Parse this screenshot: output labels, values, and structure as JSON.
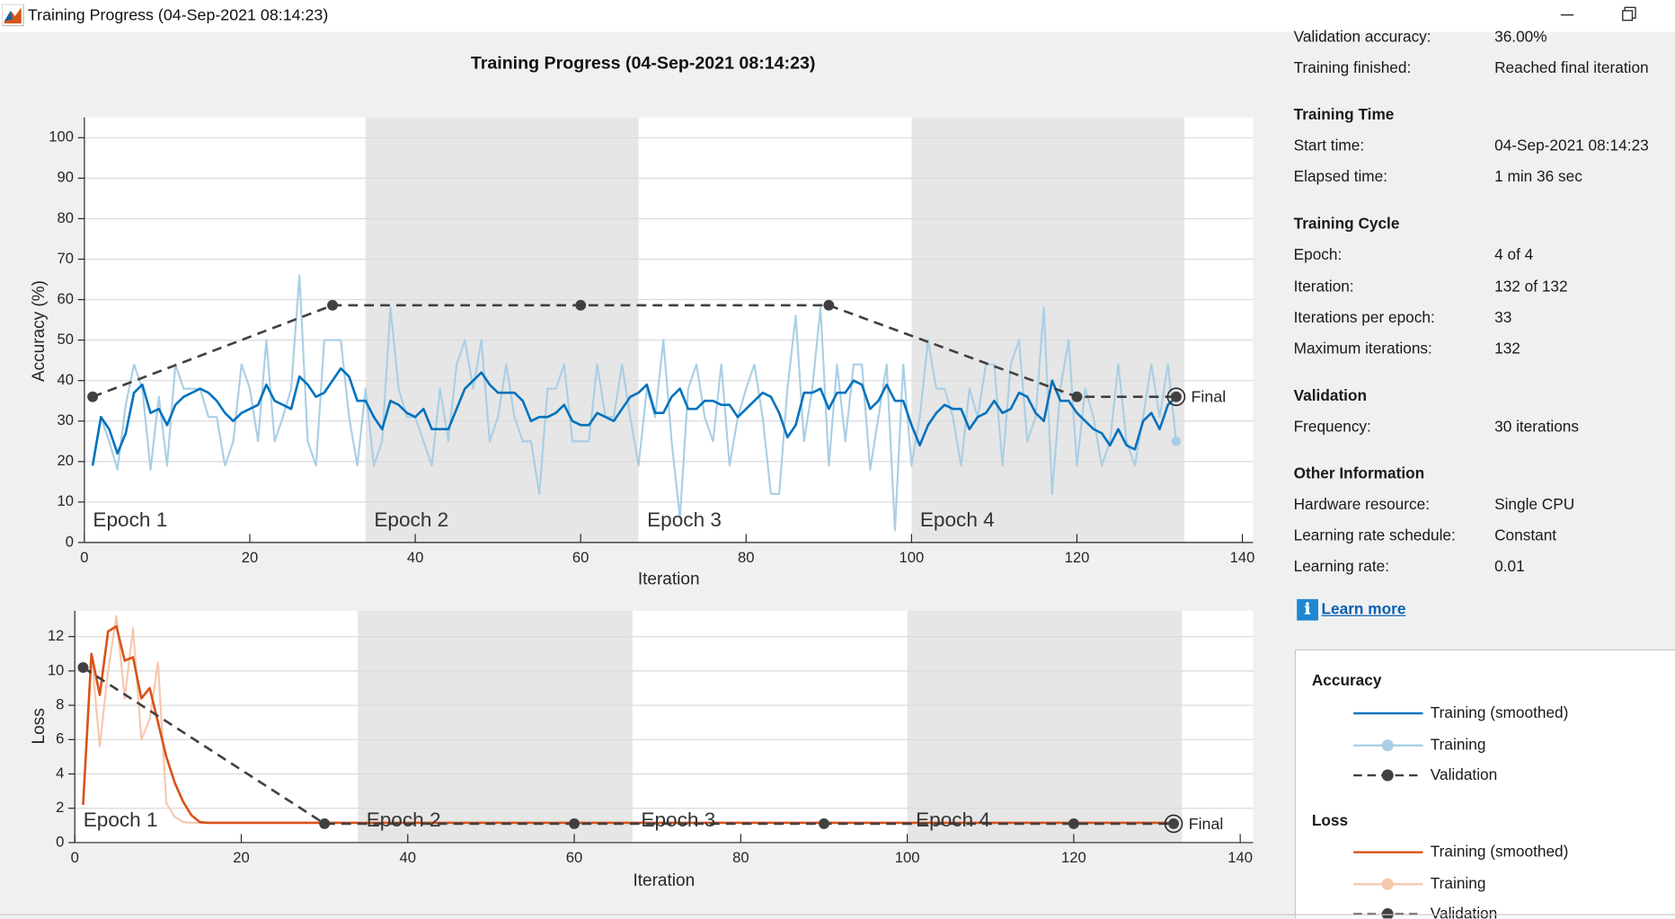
{
  "window_title": "Training Progress (04-Sep-2021 08:14:23)",
  "figure_title": "Training Progress (04-Sep-2021 08:14:23)",
  "chart_data": [
    {
      "type": "line",
      "legend_title": "Accuracy",
      "xlabel": "Iteration",
      "ylabel": "Accuracy (%)",
      "xlim": [
        0,
        140
      ],
      "xticks": [
        0,
        20,
        40,
        60,
        80,
        100,
        120,
        140
      ],
      "ylim": [
        0,
        105
      ],
      "yticks": [
        0,
        10,
        20,
        30,
        40,
        50,
        60,
        70,
        80,
        90,
        100
      ],
      "grid": true,
      "final_label": "Final",
      "epochs": [
        {
          "label": "Epoch 1",
          "start": 0,
          "end": 34
        },
        {
          "label": "Epoch 2",
          "start": 34,
          "end": 67
        },
        {
          "label": "Epoch 3",
          "start": 67,
          "end": 100
        },
        {
          "label": "Epoch 4",
          "start": 100,
          "end": 133
        }
      ],
      "x": [
        1,
        2,
        3,
        4,
        5,
        6,
        7,
        8,
        9,
        10,
        11,
        12,
        13,
        14,
        15,
        16,
        17,
        18,
        19,
        20,
        21,
        22,
        23,
        24,
        25,
        26,
        27,
        28,
        29,
        30,
        31,
        32,
        33,
        34,
        35,
        36,
        37,
        38,
        39,
        40,
        41,
        42,
        43,
        44,
        45,
        46,
        47,
        48,
        49,
        50,
        51,
        52,
        53,
        54,
        55,
        56,
        57,
        58,
        59,
        60,
        61,
        62,
        63,
        64,
        65,
        66,
        67,
        68,
        69,
        70,
        71,
        72,
        73,
        74,
        75,
        76,
        77,
        78,
        79,
        80,
        81,
        82,
        83,
        84,
        85,
        86,
        87,
        88,
        89,
        90,
        91,
        92,
        93,
        94,
        95,
        96,
        97,
        98,
        99,
        100,
        101,
        102,
        103,
        104,
        105,
        106,
        107,
        108,
        109,
        110,
        111,
        112,
        113,
        114,
        115,
        116,
        117,
        118,
        119,
        120,
        121,
        122,
        123,
        124,
        125,
        126,
        127,
        128,
        129,
        130,
        131,
        132
      ],
      "series": [
        {
          "name": "Training (smoothed)",
          "color": "#0072bd",
          "line_style": "solid",
          "values": [
            19,
            31,
            28,
            22,
            27,
            37,
            39,
            32,
            33,
            29,
            34,
            36,
            37,
            38,
            37,
            35,
            32,
            30,
            32,
            33,
            34,
            39,
            35,
            34,
            33,
            41,
            39,
            36,
            37,
            40,
            43,
            41,
            35,
            35,
            31,
            28,
            35,
            34,
            32,
            31,
            33,
            28,
            28,
            28,
            33,
            38,
            40,
            42,
            39,
            37,
            37,
            37,
            35,
            30,
            31,
            31,
            32,
            34,
            30,
            29,
            29,
            32,
            31,
            30,
            33,
            36,
            37,
            39,
            32,
            32,
            36,
            38,
            33,
            33,
            35,
            35,
            34,
            34,
            31,
            33,
            35,
            37,
            36,
            32,
            26,
            29,
            37,
            37,
            38,
            33,
            37,
            37,
            40,
            39,
            33,
            35,
            39,
            35,
            35,
            29,
            24,
            29,
            32,
            34,
            33,
            33,
            28,
            31,
            32,
            35,
            32,
            33,
            37,
            36,
            32,
            30,
            40,
            35,
            35,
            32,
            30,
            28,
            27,
            24,
            28,
            24,
            23,
            30,
            32,
            28,
            34,
            36
          ]
        },
        {
          "name": "Training",
          "color": "#a9cfe4",
          "line_style": "solid",
          "marker": "o",
          "values": [
            19,
            31,
            25,
            18,
            34,
            44,
            38,
            18,
            36,
            19,
            44,
            38,
            38,
            38,
            31,
            31,
            19,
            25,
            44,
            38,
            25,
            50,
            25,
            31,
            38,
            66,
            25,
            19,
            50,
            50,
            50,
            31,
            19,
            38,
            19,
            25,
            58,
            38,
            31,
            31,
            25,
            19,
            38,
            25,
            44,
            50,
            38,
            50,
            25,
            31,
            44,
            31,
            25,
            25,
            12,
            38,
            38,
            44,
            25,
            25,
            25,
            44,
            31,
            31,
            44,
            31,
            19,
            38,
            31,
            50,
            25,
            6,
            38,
            44,
            31,
            25,
            44,
            19,
            31,
            38,
            44,
            31,
            12,
            12,
            38,
            56,
            25,
            38,
            58,
            19,
            44,
            25,
            44,
            44,
            18,
            31,
            44,
            3,
            44,
            19,
            31,
            50,
            38,
            38,
            31,
            19,
            38,
            31,
            44,
            44,
            19,
            44,
            50,
            25,
            31,
            58,
            12,
            38,
            50,
            19,
            38,
            31,
            19,
            25,
            44,
            25,
            19,
            31,
            44,
            31,
            44,
            25
          ]
        },
        {
          "name": "Validation",
          "color": "#404040",
          "line_style": "dashed",
          "marker": "o",
          "x": [
            1,
            30,
            60,
            90,
            120,
            132
          ],
          "values": [
            36,
            58.6,
            58.6,
            58.6,
            36,
            36
          ]
        }
      ]
    },
    {
      "type": "line",
      "legend_title": "Loss",
      "xlabel": "Iteration",
      "ylabel": "Loss",
      "xlim": [
        0,
        140
      ],
      "xticks": [
        0,
        20,
        40,
        60,
        80,
        100,
        120,
        140
      ],
      "ylim": [
        0,
        13.5
      ],
      "yticks": [
        0,
        2,
        4,
        6,
        8,
        10,
        12
      ],
      "grid": true,
      "final_label": "Final",
      "epochs": [
        {
          "label": "Epoch 1",
          "start": 0,
          "end": 34
        },
        {
          "label": "Epoch 2",
          "start": 34,
          "end": 67
        },
        {
          "label": "Epoch 3",
          "start": 67,
          "end": 100
        },
        {
          "label": "Epoch 4",
          "start": 100,
          "end": 133
        }
      ],
      "x": [
        1,
        2,
        3,
        4,
        5,
        6,
        7,
        8,
        9,
        10,
        11,
        12,
        13,
        14,
        15,
        16,
        17,
        18,
        19,
        20,
        21,
        22,
        23,
        24,
        25,
        26,
        27,
        28,
        29,
        30,
        31,
        32,
        33,
        34,
        35,
        36,
        37,
        38,
        39,
        40,
        41,
        42,
        43,
        44,
        45,
        46,
        47,
        48,
        49,
        50,
        51,
        52,
        53,
        54,
        55,
        56,
        57,
        58,
        59,
        60,
        61,
        62,
        63,
        64,
        65,
        66,
        67,
        68,
        69,
        70,
        71,
        72,
        73,
        74,
        75,
        76,
        77,
        78,
        79,
        80,
        81,
        82,
        83,
        84,
        85,
        86,
        87,
        88,
        89,
        90,
        91,
        92,
        93,
        94,
        95,
        96,
        97,
        98,
        99,
        100,
        101,
        102,
        103,
        104,
        105,
        106,
        107,
        108,
        109,
        110,
        111,
        112,
        113,
        114,
        115,
        116,
        117,
        118,
        119,
        120,
        121,
        122,
        123,
        124,
        125,
        126,
        127,
        128,
        129,
        130,
        131,
        132
      ],
      "series": [
        {
          "name": "Training (smoothed)",
          "color": "#d95319",
          "line_style": "solid",
          "values": [
            2.2,
            11,
            8.6,
            12.3,
            12.6,
            10.6,
            10.8,
            8.4,
            9,
            7,
            5,
            3.5,
            2.4,
            1.6,
            1.2,
            1.15,
            1.15,
            1.15,
            1.15,
            1.15,
            1.15,
            1.15,
            1.15,
            1.15,
            1.15,
            1.15,
            1.15,
            1.15,
            1.15,
            1.15,
            1.15,
            1.15,
            1.15,
            1.15,
            1.15,
            1.15,
            1.15,
            1.15,
            1.15,
            1.15,
            1.15,
            1.15,
            1.15,
            1.15,
            1.15,
            1.15,
            1.15,
            1.15,
            1.15,
            1.15,
            1.15,
            1.15,
            1.15,
            1.15,
            1.15,
            1.15,
            1.15,
            1.15,
            1.15,
            1.15,
            1.15,
            1.15,
            1.15,
            1.15,
            1.15,
            1.15,
            1.15,
            1.15,
            1.15,
            1.15,
            1.15,
            1.15,
            1.15,
            1.15,
            1.15,
            1.15,
            1.15,
            1.15,
            1.15,
            1.15,
            1.15,
            1.15,
            1.15,
            1.15,
            1.15,
            1.15,
            1.15,
            1.15,
            1.15,
            1.15,
            1.15,
            1.15,
            1.15,
            1.15,
            1.15,
            1.15,
            1.15,
            1.15,
            1.15,
            1.15,
            1.15,
            1.15,
            1.15,
            1.15,
            1.15,
            1.15,
            1.15,
            1.15,
            1.15,
            1.15,
            1.15,
            1.15,
            1.15,
            1.15,
            1.15,
            1.15,
            1.15,
            1.15,
            1.15,
            1.15,
            1.15,
            1.15,
            1.15,
            1.15,
            1.15,
            1.15,
            1.15,
            1.15,
            1.15,
            1.15,
            1.15,
            1.15
          ]
        },
        {
          "name": "Training",
          "color": "#f6c7ad",
          "line_style": "solid",
          "marker": "o",
          "values": [
            2.2,
            11,
            5.6,
            10,
            13.2,
            8.4,
            12.5,
            6,
            7.2,
            10.5,
            2.3,
            1.5,
            1.2,
            1.15,
            1.15,
            1.15,
            1.15,
            1.15,
            1.15,
            1.15,
            1.15,
            1.15,
            1.15,
            1.15,
            1.15,
            1.15,
            1.15,
            1.15,
            1.15,
            1.15,
            1.15,
            1.15,
            1.15,
            1.15,
            1.15,
            1.15,
            1.15,
            1.15,
            1.15,
            1.15,
            1.15,
            1.15,
            1.15,
            1.15,
            1.15,
            1.15,
            1.15,
            1.15,
            1.15,
            1.15,
            1.15,
            1.15,
            1.15,
            1.15,
            1.15,
            1.15,
            1.15,
            1.15,
            1.15,
            1.15,
            1.15,
            1.15,
            1.15,
            1.15,
            1.15,
            1.15,
            1.15,
            1.15,
            1.15,
            1.15,
            1.15,
            1.15,
            1.15,
            1.15,
            1.15,
            1.15,
            1.15,
            1.15,
            1.15,
            1.15,
            1.15,
            1.15,
            1.15,
            1.15,
            1.15,
            1.15,
            1.15,
            1.15,
            1.15,
            1.15,
            1.15,
            1.15,
            1.15,
            1.15,
            1.15,
            1.15,
            1.15,
            1.15,
            1.15,
            1.15,
            1.15,
            1.15,
            1.15,
            1.15,
            1.15,
            1.15,
            1.15,
            1.15,
            1.15,
            1.15,
            1.15,
            1.15,
            1.15,
            1.15,
            1.15,
            1.15,
            1.15,
            1.15,
            1.15,
            1.15,
            1.15,
            1.15,
            1.15,
            1.15,
            1.15,
            1.15,
            1.15,
            1.15,
            1.15,
            1.15,
            1.15,
            1.15
          ]
        },
        {
          "name": "Validation",
          "color": "#404040",
          "line_style": "dashed",
          "marker": "o",
          "x": [
            1,
            30,
            60,
            90,
            120,
            132
          ],
          "values": [
            10.2,
            1.1,
            1.1,
            1.1,
            1.1,
            1.1
          ]
        }
      ]
    }
  ],
  "info": {
    "sections": [
      {
        "rows": [
          {
            "label": "Validation accuracy:",
            "value": "36.00%"
          },
          {
            "label": "Training finished:",
            "value": "Reached final iteration"
          }
        ]
      },
      {
        "heading": "Training Time",
        "rows": [
          {
            "label": "Start time:",
            "value": "04-Sep-2021 08:14:23"
          },
          {
            "label": "Elapsed time:",
            "value": "1 min 36 sec"
          }
        ]
      },
      {
        "heading": "Training Cycle",
        "rows": [
          {
            "label": "Epoch:",
            "value": "4 of 4"
          },
          {
            "label": "Iteration:",
            "value": "132 of 132"
          },
          {
            "label": "Iterations per epoch:",
            "value": "33"
          },
          {
            "label": "Maximum iterations:",
            "value": "132"
          }
        ]
      },
      {
        "heading": "Validation",
        "rows": [
          {
            "label": "Frequency:",
            "value": "30 iterations"
          }
        ]
      },
      {
        "heading": "Other Information",
        "rows": [
          {
            "label": "Hardware resource:",
            "value": "Single CPU"
          },
          {
            "label": "Learning rate schedule:",
            "value": "Constant"
          },
          {
            "label": "Learning rate:",
            "value": "0.01"
          }
        ]
      }
    ],
    "link": "Learn more"
  }
}
